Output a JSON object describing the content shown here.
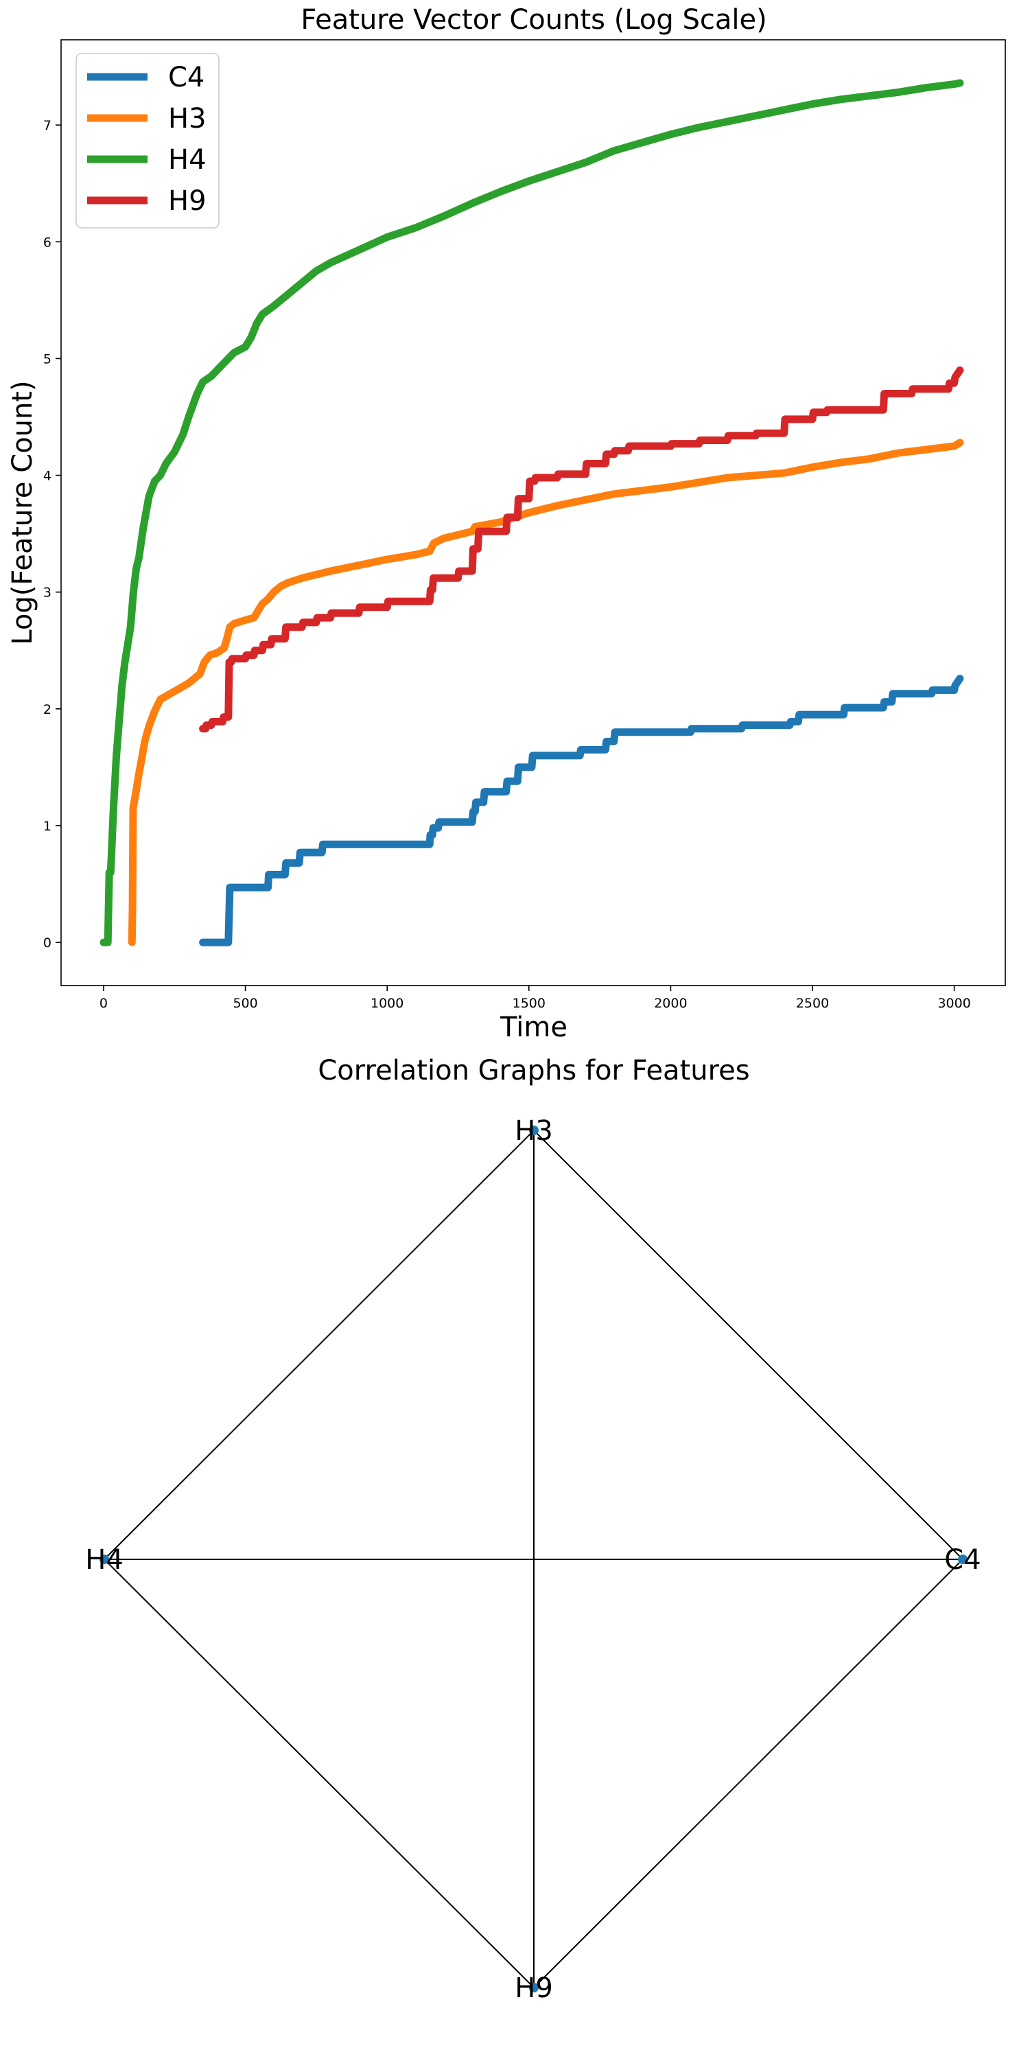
{
  "chart_data": [
    {
      "type": "line",
      "title": "Feature Vector Counts (Log Scale)",
      "xlabel": "Time",
      "ylabel": "Log(Feature Count)",
      "xlim": [
        -150,
        3180
      ],
      "ylim": [
        -0.37,
        7.73
      ],
      "xticks": [
        0,
        500,
        1000,
        1500,
        2000,
        2500,
        3000
      ],
      "yticks": [
        0,
        1,
        2,
        3,
        4,
        5,
        6,
        7
      ],
      "grid": false,
      "legend": "top-left",
      "series": [
        {
          "name": "C4",
          "color": "#1f77b4",
          "step": true,
          "x": [
            350,
            440,
            445,
            580,
            582,
            640,
            643,
            690,
            693,
            770,
            773,
            1150,
            1152,
            1160,
            1162,
            1180,
            1183,
            1300,
            1303,
            1310,
            1313,
            1340,
            1343,
            1420,
            1423,
            1460,
            1463,
            1510,
            1513,
            1680,
            1683,
            1770,
            1773,
            1800,
            1803,
            2070,
            2073,
            2250,
            2253,
            2420,
            2423,
            2450,
            2453,
            2610,
            2613,
            2750,
            2753,
            2780,
            2783,
            2920,
            2923,
            3000,
            3003,
            3020
          ],
          "y": [
            0.0,
            0.0,
            0.47,
            0.47,
            0.58,
            0.58,
            0.68,
            0.68,
            0.77,
            0.77,
            0.84,
            0.84,
            0.92,
            0.92,
            0.98,
            0.98,
            1.03,
            1.03,
            1.12,
            1.12,
            1.2,
            1.2,
            1.29,
            1.29,
            1.38,
            1.38,
            1.5,
            1.5,
            1.6,
            1.6,
            1.65,
            1.65,
            1.72,
            1.72,
            1.8,
            1.8,
            1.83,
            1.83,
            1.86,
            1.86,
            1.89,
            1.89,
            1.95,
            1.95,
            2.01,
            2.01,
            2.06,
            2.06,
            2.13,
            2.13,
            2.16,
            2.16,
            2.2,
            2.26
          ]
        },
        {
          "name": "H3",
          "color": "#ff7f0e",
          "step": false,
          "x": [
            100,
            102,
            104,
            115,
            125,
            135,
            145,
            160,
            180,
            200,
            250,
            300,
            340,
            355,
            375,
            400,
            425,
            435,
            445,
            460,
            500,
            530,
            545,
            560,
            580,
            600,
            625,
            650,
            700,
            800,
            900,
            1000,
            1100,
            1150,
            1165,
            1200,
            1300,
            1310,
            1400,
            1450,
            1500,
            1600,
            1700,
            1800,
            1900,
            2000,
            2100,
            2200,
            2300,
            2400,
            2500,
            2600,
            2700,
            2800,
            2900,
            3000,
            3020
          ],
          "y": [
            0.0,
            0.3,
            1.15,
            1.3,
            1.45,
            1.58,
            1.72,
            1.85,
            1.98,
            2.08,
            2.15,
            2.22,
            2.3,
            2.4,
            2.46,
            2.48,
            2.52,
            2.6,
            2.7,
            2.73,
            2.76,
            2.78,
            2.84,
            2.9,
            2.94,
            3.0,
            3.05,
            3.08,
            3.12,
            3.18,
            3.23,
            3.28,
            3.32,
            3.35,
            3.42,
            3.46,
            3.52,
            3.56,
            3.6,
            3.64,
            3.68,
            3.74,
            3.79,
            3.84,
            3.87,
            3.9,
            3.94,
            3.98,
            4.0,
            4.02,
            4.07,
            4.11,
            4.14,
            4.19,
            4.22,
            4.25,
            4.28
          ]
        },
        {
          "name": "H4",
          "color": "#2ca02c",
          "step": false,
          "x": [
            0,
            15,
            20,
            25,
            35,
            45,
            55,
            65,
            75,
            85,
            95,
            105,
            115,
            125,
            140,
            160,
            180,
            200,
            220,
            250,
            280,
            300,
            330,
            350,
            380,
            420,
            460,
            500,
            520,
            540,
            560,
            600,
            650,
            700,
            750,
            800,
            900,
            1000,
            1100,
            1200,
            1300,
            1400,
            1500,
            1600,
            1700,
            1800,
            1900,
            2000,
            2100,
            2200,
            2300,
            2400,
            2500,
            2600,
            2700,
            2800,
            2900,
            3000,
            3020
          ],
          "y": [
            0.0,
            0.0,
            0.6,
            0.6,
            1.15,
            1.6,
            1.9,
            2.2,
            2.4,
            2.55,
            2.7,
            3.0,
            3.2,
            3.3,
            3.55,
            3.82,
            3.95,
            4.0,
            4.1,
            4.2,
            4.35,
            4.5,
            4.7,
            4.8,
            4.85,
            4.95,
            5.05,
            5.1,
            5.18,
            5.3,
            5.38,
            5.45,
            5.55,
            5.65,
            5.75,
            5.82,
            5.93,
            6.04,
            6.12,
            6.22,
            6.33,
            6.43,
            6.52,
            6.6,
            6.68,
            6.78,
            6.85,
            6.92,
            6.98,
            7.03,
            7.08,
            7.13,
            7.18,
            7.22,
            7.25,
            7.28,
            7.32,
            7.35,
            7.36
          ]
        },
        {
          "name": "H9",
          "color": "#d62728",
          "step": true,
          "x": [
            350,
            360,
            362,
            380,
            383,
            420,
            423,
            440,
            443,
            450,
            453,
            500,
            503,
            530,
            533,
            560,
            563,
            590,
            593,
            640,
            643,
            700,
            703,
            750,
            753,
            800,
            803,
            900,
            903,
            1000,
            1003,
            1150,
            1153,
            1160,
            1163,
            1250,
            1253,
            1300,
            1303,
            1320,
            1323,
            1420,
            1423,
            1460,
            1463,
            1500,
            1503,
            1520,
            1523,
            1600,
            1603,
            1700,
            1703,
            1770,
            1773,
            1800,
            1803,
            1850,
            1853,
            2000,
            2003,
            2100,
            2103,
            2200,
            2203,
            2300,
            2303,
            2400,
            2403,
            2500,
            2503,
            2550,
            2553,
            2750,
            2753,
            2850,
            2853,
            2980,
            2983,
            3000,
            3003,
            3020
          ],
          "y": [
            1.83,
            1.83,
            1.86,
            1.86,
            1.89,
            1.89,
            1.93,
            1.93,
            2.4,
            2.4,
            2.43,
            2.43,
            2.46,
            2.46,
            2.5,
            2.5,
            2.55,
            2.55,
            2.6,
            2.6,
            2.7,
            2.7,
            2.74,
            2.74,
            2.78,
            2.78,
            2.82,
            2.82,
            2.87,
            2.87,
            2.92,
            2.92,
            3.02,
            3.02,
            3.12,
            3.12,
            3.18,
            3.18,
            3.37,
            3.37,
            3.52,
            3.52,
            3.64,
            3.64,
            3.8,
            3.8,
            3.95,
            3.95,
            3.98,
            3.98,
            4.01,
            4.01,
            4.1,
            4.1,
            4.18,
            4.18,
            4.21,
            4.21,
            4.25,
            4.25,
            4.27,
            4.27,
            4.3,
            4.3,
            4.34,
            4.34,
            4.36,
            4.36,
            4.48,
            4.48,
            4.54,
            4.54,
            4.56,
            4.56,
            4.7,
            4.7,
            4.74,
            4.74,
            4.79,
            4.79,
            4.84,
            4.9
          ]
        }
      ]
    },
    {
      "type": "diagram",
      "title": "Correlation Graphs for Features",
      "nodes": [
        "H3",
        "H4",
        "C4",
        "H9"
      ],
      "edges": [
        [
          "H3",
          "H4"
        ],
        [
          "H3",
          "C4"
        ],
        [
          "H3",
          "H9"
        ],
        [
          "H4",
          "C4"
        ],
        [
          "H4",
          "H9"
        ],
        [
          "C4",
          "H9"
        ]
      ],
      "node_color": "#1f77b4",
      "edge_color": "#000000"
    }
  ]
}
